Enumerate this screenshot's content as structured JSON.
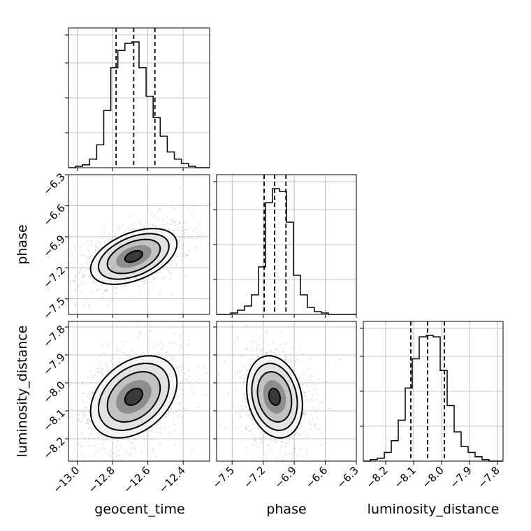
{
  "chart_data": {
    "type": "corner",
    "parameters": [
      {
        "name": "geocent_time",
        "label": "geocent_time",
        "mean": -12.68,
        "sd": 0.1,
        "range": [
          -13.05,
          -12.25
        ],
        "ticks": [
          -13.0,
          -12.8,
          -12.6,
          -12.4
        ],
        "tick_labels": [
          "−13.0",
          "−12.8",
          "−12.6",
          "−12.4"
        ],
        "quantiles": [
          -12.78,
          -12.68,
          -12.56
        ],
        "hist": [
          0,
          1,
          2,
          6,
          16,
          40,
          70,
          82,
          87,
          88,
          70,
          50,
          35,
          22,
          11,
          6,
          3,
          1,
          0,
          0
        ]
      },
      {
        "name": "phase",
        "label": "phase",
        "mean": -7.09,
        "sd": 0.11,
        "range": [
          -7.65,
          -6.3
        ],
        "ticks": [
          -7.5,
          -7.2,
          -6.9,
          -6.6,
          -6.3
        ],
        "tick_labels": [
          "−7.5",
          "−7.2",
          "−6.9",
          "−6.6",
          "−6.3"
        ],
        "quantiles": [
          -7.19,
          -7.09,
          -6.98
        ],
        "hist": [
          0,
          0,
          1,
          3,
          6,
          14,
          34,
          80,
          90,
          88,
          66,
          28,
          14,
          5,
          2,
          1,
          0,
          0,
          0,
          0
        ]
      },
      {
        "name": "luminosity_distance",
        "label": "luminosity_distance",
        "mean": -8.05,
        "sd": 0.06,
        "range": [
          -8.28,
          -7.78
        ],
        "ticks": [
          -8.2,
          -8.1,
          -8.0,
          -7.9,
          -7.8
        ],
        "tick_labels": [
          "−8.2",
          "−8.1",
          "−8.0",
          "−7.9",
          "−7.8"
        ],
        "quantiles": [
          -8.11,
          -8.05,
          -7.99
        ],
        "hist": [
          0,
          1,
          2,
          6,
          14,
          28,
          50,
          70,
          85,
          86,
          85,
          62,
          38,
          20,
          10,
          6,
          3,
          1,
          0,
          0
        ]
      }
    ],
    "correlations": {
      "geocent_time|phase": 0.45,
      "geocent_time|luminosity_distance": 0.35,
      "phase|luminosity_distance": -0.2
    },
    "quantile_levels": [
      0.16,
      0.5,
      0.84
    ],
    "grid": true,
    "colors": {
      "line": "#000000",
      "grid": "#b0b0b0",
      "points": "#999999"
    }
  }
}
